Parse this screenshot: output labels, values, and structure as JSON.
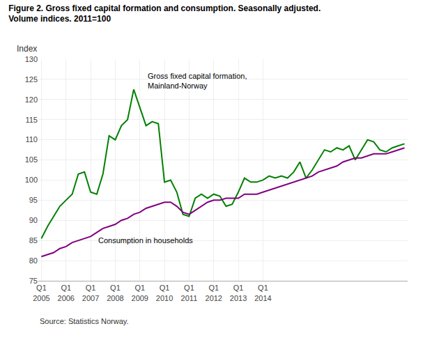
{
  "chart_data": {
    "type": "line",
    "title": "Figure 2. Gross fixed capital formation and consumption. Seasonally adjusted.",
    "subtitle": "Volume indices. 2011=100",
    "ylabel": "Index",
    "source": "Source: Statistics Norway.",
    "categories": [
      "Q1\n2005",
      null,
      null,
      null,
      "Q1\n2006",
      null,
      null,
      null,
      "Q1\n2007",
      null,
      null,
      null,
      "Q1\n2008",
      null,
      null,
      null,
      "Q1\n2009",
      null,
      null,
      null,
      "Q1\n2010",
      null,
      null,
      null,
      "Q1\n2011",
      null,
      null,
      null,
      "Q1\n2012",
      null,
      null,
      null,
      "Q1\n2013",
      null,
      null,
      null,
      "Q1\n2014",
      null,
      null,
      null,
      null,
      null,
      null,
      null,
      null,
      null,
      null,
      null,
      null,
      null,
      null,
      null,
      null,
      null,
      null,
      null,
      null,
      null,
      null,
      null
    ],
    "series": [
      {
        "color": "#008000",
        "values": [
          85.5,
          88.5,
          91.0,
          93.5,
          95.0,
          96.5,
          101.5,
          102.0,
          97.0,
          96.5,
          101.5,
          111.0,
          110.0,
          113.5,
          115.0,
          122.5,
          118.0,
          113.5,
          114.5,
          114.0,
          99.5,
          100.0,
          97.0,
          91.5,
          91.0,
          95.5,
          96.5,
          95.5,
          96.5,
          96.0,
          93.5,
          94.0,
          97.0,
          100.5,
          99.5,
          99.5,
          100.0,
          101.0,
          100.5,
          101.0,
          100.5,
          102.0,
          104.5,
          100.5,
          102.5,
          105.0,
          107.5,
          107.0,
          108.0,
          107.5,
          108.5,
          105.0,
          107.5,
          110.0,
          109.5,
          107.5,
          107.0,
          108.0,
          108.5,
          109.0
        ]
      },
      {
        "color": "#800080",
        "values": [
          81.0,
          81.5,
          82.0,
          83.0,
          83.5,
          84.5,
          85.0,
          85.5,
          86.0,
          87.0,
          88.0,
          88.5,
          89.0,
          90.0,
          90.5,
          91.5,
          92.0,
          93.0,
          93.5,
          94.0,
          94.5,
          94.5,
          93.5,
          92.0,
          91.5,
          92.5,
          93.5,
          94.5,
          95.0,
          95.0,
          95.5,
          95.5,
          95.5,
          96.5,
          96.5,
          96.5,
          97.0,
          97.5,
          98.0,
          98.5,
          99.0,
          99.5,
          100.0,
          100.5,
          101.0,
          102.0,
          102.5,
          103.0,
          103.5,
          104.5,
          105.0,
          105.5,
          105.5,
          106.0,
          106.5,
          106.5,
          106.5,
          107.0,
          107.5,
          108.0
        ]
      }
    ],
    "annotations": [
      {
        "text": "Gross fixed capital formation,\nMainland-Norway",
        "x": 17,
        "y": 122.0
      },
      {
        "text": "Consumption in households",
        "x": 9,
        "y": 86.5
      }
    ],
    "ylim": [
      75,
      130
    ],
    "yticks": [
      75,
      80,
      85,
      90,
      95,
      100,
      105,
      110,
      115,
      120,
      125,
      130
    ],
    "grid": true
  }
}
